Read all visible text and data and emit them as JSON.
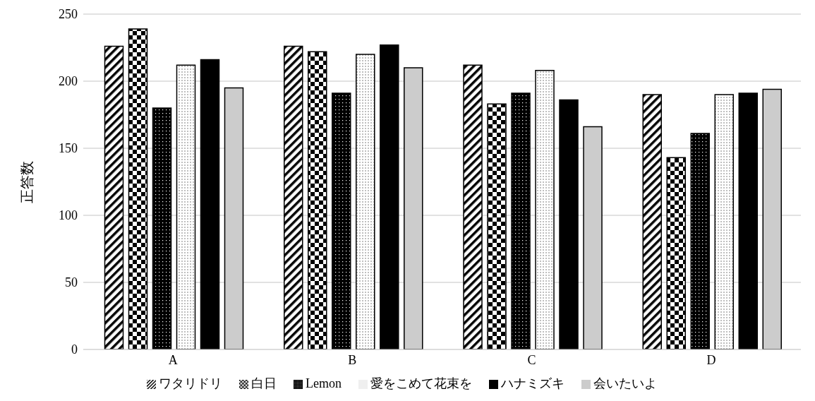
{
  "chart_data": {
    "type": "bar",
    "ylabel": "正答数",
    "categories": [
      "A",
      "B",
      "C",
      "D"
    ],
    "series": [
      {
        "name": "ワタリドリ",
        "color": "#000000",
        "values": [
          226,
          226,
          212,
          190
        ]
      },
      {
        "name": "白日",
        "color": "#000000",
        "values": [
          239,
          222,
          183,
          143
        ]
      },
      {
        "name": "Lemon",
        "color": "#000000",
        "values": [
          180,
          191,
          191,
          161
        ]
      },
      {
        "name": "愛をこめて花束を",
        "color": "#000000",
        "values": [
          212,
          220,
          208,
          190
        ]
      },
      {
        "name": "ハナミズキ",
        "color": "#000000",
        "values": [
          216,
          227,
          186,
          191
        ]
      },
      {
        "name": "会いたいよ",
        "color": "#cccccc",
        "values": [
          195,
          210,
          166,
          194
        ]
      }
    ],
    "ylim": [
      0,
      250
    ],
    "yticks": [
      0,
      50,
      100,
      150,
      200,
      250
    ],
    "grid": "y",
    "legend": "bottom"
  }
}
